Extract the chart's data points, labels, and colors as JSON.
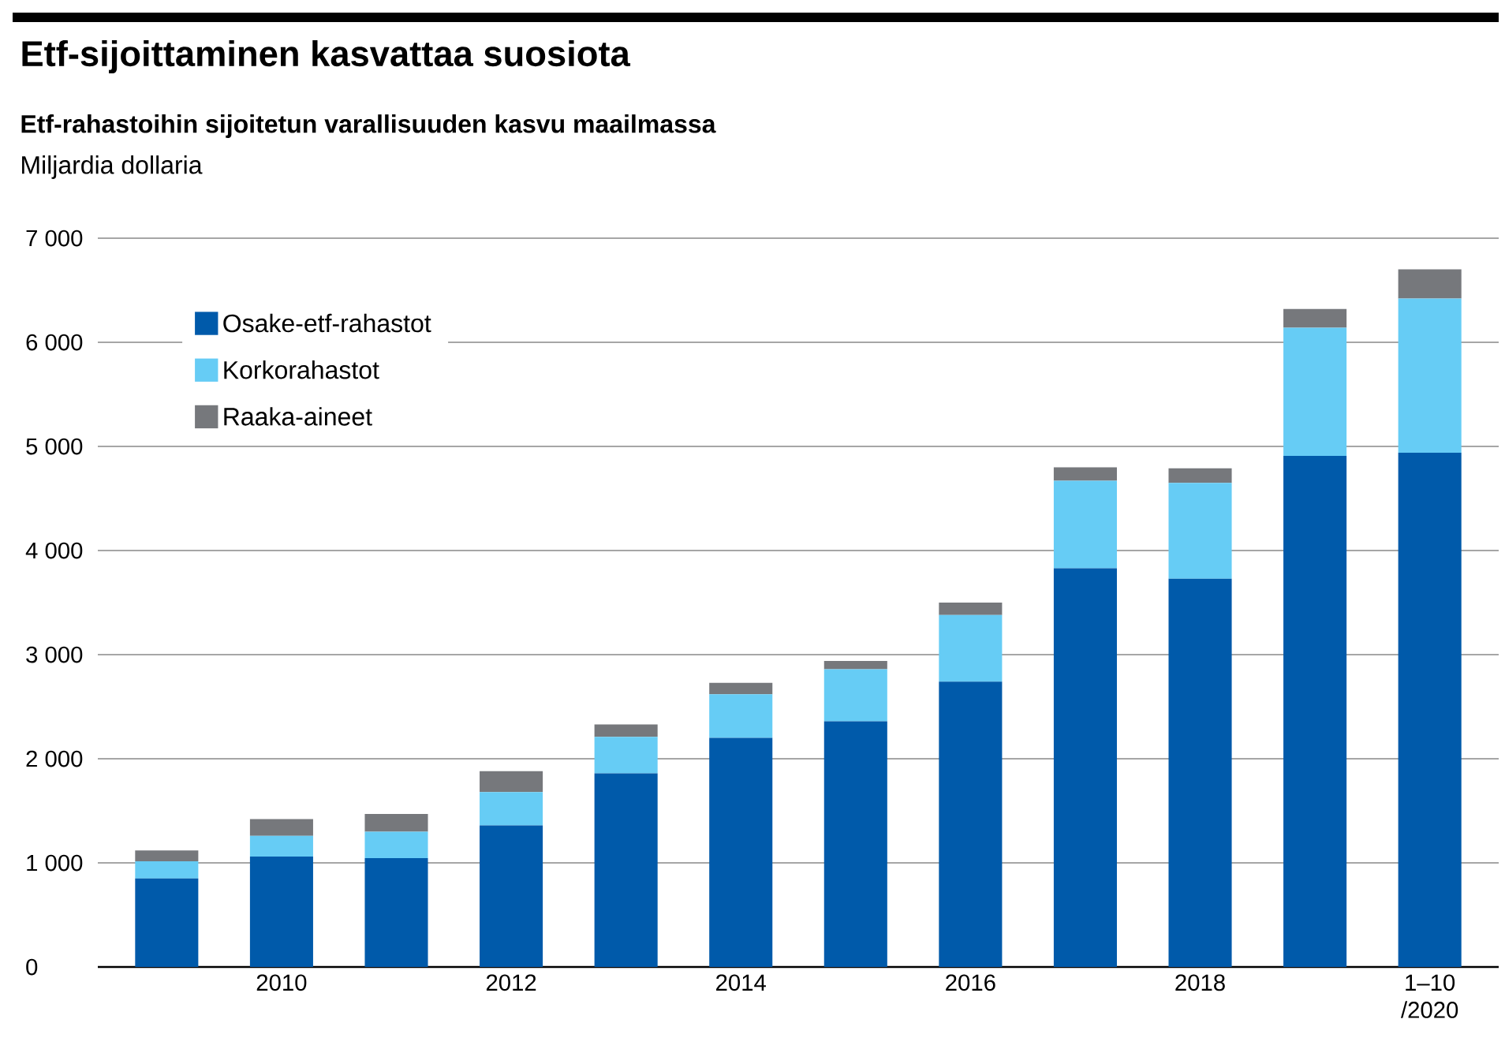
{
  "chart_data": {
    "type": "bar",
    "stacked": true,
    "title": "Etf-sijoittaminen kasvattaa suosiota",
    "subtitle": "Etf-rahastoihin sijoitetun varallisuuden kasvu maailmassa",
    "ylabel": "Miljardia dollaria",
    "categories": [
      null,
      "2010",
      null,
      "2012",
      null,
      "2014",
      null,
      "2016",
      null,
      "2018",
      null,
      "1–10 /2020"
    ],
    "series": [
      {
        "name": "Osake-etf-rahastot",
        "color": "#005aaa",
        "values": [
          850,
          1060,
          1045,
          1360,
          1860,
          2200,
          2360,
          2740,
          3830,
          3730,
          4910,
          4940
        ]
      },
      {
        "name": "Korkorahastot",
        "color": "#66ccf5",
        "values": [
          165,
          200,
          255,
          320,
          350,
          420,
          500,
          640,
          840,
          920,
          1230,
          1480
        ]
      },
      {
        "name": "Raaka-aineet",
        "color": "#76787c",
        "values": [
          105,
          160,
          170,
          200,
          120,
          110,
          80,
          120,
          130,
          140,
          180,
          280
        ]
      }
    ],
    "ylim": [
      0,
      7000
    ],
    "yticks": [
      0,
      {
        "value": 1000,
        "label": "1 000"
      },
      {
        "value": 2000,
        "label": "2 000"
      },
      {
        "value": 3000,
        "label": "3 000"
      },
      {
        "value": 4000,
        "label": "4 000"
      },
      {
        "value": 5000,
        "label": "5 000"
      },
      {
        "value": 6000,
        "label": "6 000"
      },
      {
        "value": 7000,
        "label": "7 000"
      }
    ],
    "grid": "y",
    "legend": "top left"
  }
}
